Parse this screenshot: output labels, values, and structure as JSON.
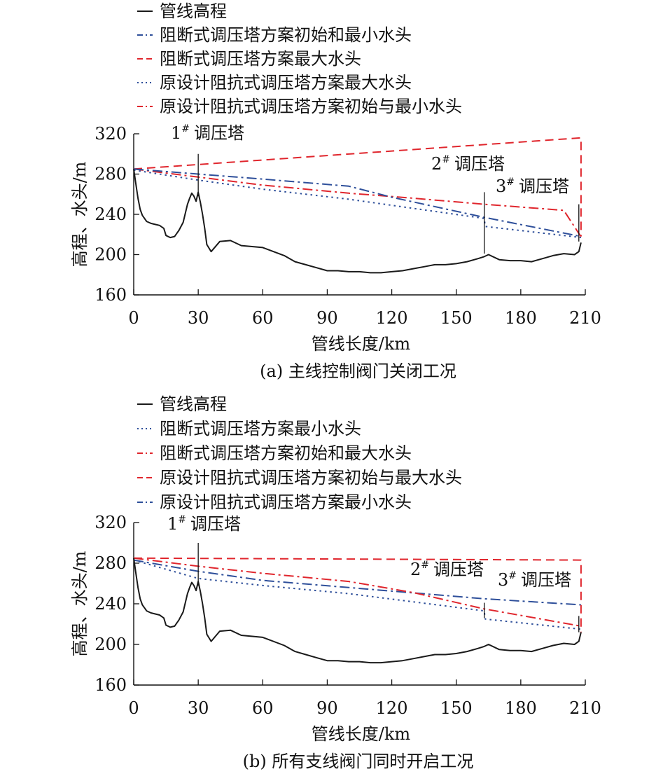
{
  "colors": {
    "elevation": "#1a1a1a",
    "blue": "#2e4f9a",
    "red": "#e0262d",
    "axis": "#111111"
  },
  "chart_data": [
    {
      "type": "line",
      "caption": "(a) 主线控制阀门关闭工况",
      "xlabel": "管线长度/km",
      "ylabel": "高程、水头/m",
      "xlim": [
        0,
        210
      ],
      "ylim": [
        160,
        320
      ],
      "xticks": [
        "0",
        "30",
        "60",
        "90",
        "120",
        "150",
        "180",
        "210"
      ],
      "yticks": [
        "160",
        "200",
        "240",
        "280",
        "320"
      ],
      "towers": [
        {
          "label": "1# 调压塔",
          "base": "1",
          "sup": "#",
          "name": "调压塔",
          "x": 30,
          "y_top": 300,
          "y_bottom": 258
        },
        {
          "label": "2# 调压塔",
          "base": "2",
          "sup": "#",
          "name": "调压塔",
          "x": 163,
          "y_top": 262,
          "y_bottom": 201
        },
        {
          "label": "3# 调压塔",
          "base": "3",
          "sup": "#",
          "name": "调压塔",
          "x": 207,
          "y_top": 250,
          "y_bottom": 213
        }
      ],
      "series": [
        {
          "name": "管线高程",
          "color": "#1a1a1a",
          "dash": "solid",
          "x": [
            0,
            1,
            2,
            3,
            4,
            5,
            6,
            8,
            10,
            12,
            14,
            15,
            17,
            19,
            21,
            23,
            25,
            26,
            27,
            28,
            29,
            30,
            31,
            32,
            33,
            34,
            36,
            40,
            45,
            50,
            60,
            70,
            75,
            80,
            85,
            90,
            95,
            100,
            105,
            110,
            115,
            120,
            125,
            130,
            135,
            140,
            145,
            150,
            155,
            160,
            163,
            165,
            170,
            175,
            180,
            185,
            190,
            195,
            200,
            205,
            207,
            208
          ],
          "y": [
            285,
            270,
            256,
            245,
            239,
            236,
            233,
            231,
            230,
            229,
            226,
            219,
            217,
            218,
            224,
            232,
            250,
            256,
            261,
            258,
            253,
            262,
            252,
            240,
            226,
            210,
            203,
            213,
            214,
            209,
            207,
            199,
            193,
            190,
            187,
            184,
            184,
            183,
            183,
            182,
            182,
            183,
            184,
            186,
            188,
            190,
            190,
            191,
            193,
            196,
            198,
            200,
            195,
            194,
            194,
            193,
            196,
            199,
            201,
            200,
            203,
            212
          ]
        },
        {
          "name": "阻断式调压塔方案初始和最小水头",
          "color": "#2e4f9a",
          "dash": "dashdot",
          "x": [
            0,
            30,
            60,
            100,
            120,
            163,
            208
          ],
          "y": [
            285,
            280,
            275,
            268,
            257,
            237,
            218
          ]
        },
        {
          "name": "阻断式调压塔方案最大水头",
          "color": "#e0262d",
          "dash": "dash",
          "x": [
            0,
            208,
            208
          ],
          "y": [
            285,
            316,
            218
          ]
        },
        {
          "name": "原设计阻抗式调压塔方案最大水头",
          "color": "#2e4f9a",
          "dash": "dot",
          "x": [
            0,
            30,
            60,
            100,
            163,
            163.5,
            208
          ],
          "y": [
            284,
            274,
            265,
            255,
            236,
            228,
            217
          ]
        },
        {
          "name": "原设计阻抗式调压塔方案初始与最小水头",
          "color": "#e0262d",
          "dash": "dashdot",
          "x": [
            0,
            30,
            60,
            100,
            130,
            163,
            200,
            207,
            208
          ],
          "y": [
            285,
            277,
            269,
            261,
            256,
            250,
            244,
            221,
            218
          ]
        }
      ]
    },
    {
      "type": "line",
      "caption": "(b) 所有支线阀门同时开启工况",
      "xlabel": "管线长度/km",
      "ylabel": "高程、水头/m",
      "xlim": [
        0,
        210
      ],
      "ylim": [
        160,
        320
      ],
      "xticks": [
        "0",
        "30",
        "60",
        "90",
        "120",
        "150",
        "180",
        "210"
      ],
      "yticks": [
        "160",
        "200",
        "240",
        "280",
        "320"
      ],
      "towers": [
        {
          "label": "1# 调压塔",
          "base": "1",
          "sup": "#",
          "name": "调压塔",
          "x": 30,
          "y_top": 300,
          "y_bottom": 258
        },
        {
          "label": "2# 调压塔",
          "base": "2",
          "sup": "#",
          "name": "调压塔",
          "x": 163,
          "y_top": 241,
          "y_bottom": 226
        },
        {
          "label": "3# 调压塔",
          "base": "3",
          "sup": "#",
          "name": "调压塔",
          "x": 207,
          "y_top": 228,
          "y_bottom": 212
        }
      ],
      "series": [
        {
          "name": "管线高程",
          "color": "#1a1a1a",
          "dash": "solid",
          "x": [
            0,
            1,
            2,
            3,
            4,
            5,
            6,
            8,
            10,
            12,
            14,
            15,
            17,
            19,
            21,
            23,
            25,
            26,
            27,
            28,
            29,
            30,
            31,
            32,
            33,
            34,
            36,
            40,
            45,
            50,
            60,
            70,
            75,
            80,
            85,
            90,
            95,
            100,
            105,
            110,
            115,
            120,
            125,
            130,
            135,
            140,
            145,
            150,
            155,
            160,
            163,
            165,
            170,
            175,
            180,
            185,
            190,
            195,
            200,
            205,
            207,
            208
          ],
          "y": [
            285,
            270,
            256,
            245,
            239,
            236,
            233,
            231,
            230,
            229,
            226,
            219,
            217,
            218,
            224,
            232,
            250,
            256,
            261,
            258,
            253,
            262,
            252,
            240,
            226,
            210,
            203,
            213,
            214,
            209,
            207,
            199,
            193,
            190,
            187,
            184,
            184,
            183,
            183,
            182,
            182,
            183,
            184,
            186,
            188,
            190,
            190,
            191,
            193,
            196,
            198,
            200,
            195,
            194,
            194,
            193,
            196,
            199,
            201,
            200,
            203,
            212
          ]
        },
        {
          "name": "阻断式调压塔方案最小水头",
          "color": "#2e4f9a",
          "dash": "dot",
          "x": [
            0,
            30,
            60,
            100,
            163,
            163.5,
            208
          ],
          "y": [
            283,
            265,
            258,
            250,
            233,
            225,
            215
          ]
        },
        {
          "name": "阻断式调压塔方案初始和最大水头",
          "color": "#e0262d",
          "dash": "dashdot",
          "x": [
            0,
            30,
            60,
            100,
            130,
            163,
            208
          ],
          "y": [
            285,
            277,
            270,
            262,
            251,
            235,
            218
          ]
        },
        {
          "name": "原设计阻抗式调压塔方案初始与最大水头",
          "color": "#e0262d",
          "dash": "dash",
          "x": [
            0,
            208,
            208
          ],
          "y": [
            285,
            283,
            212
          ]
        },
        {
          "name": "原设计阻抗式调压塔方案最小水头",
          "color": "#2e4f9a",
          "dash": "dashdot",
          "x": [
            0,
            30,
            60,
            100,
            163,
            208
          ],
          "y": [
            283,
            272,
            263,
            256,
            245,
            239
          ]
        }
      ]
    }
  ]
}
